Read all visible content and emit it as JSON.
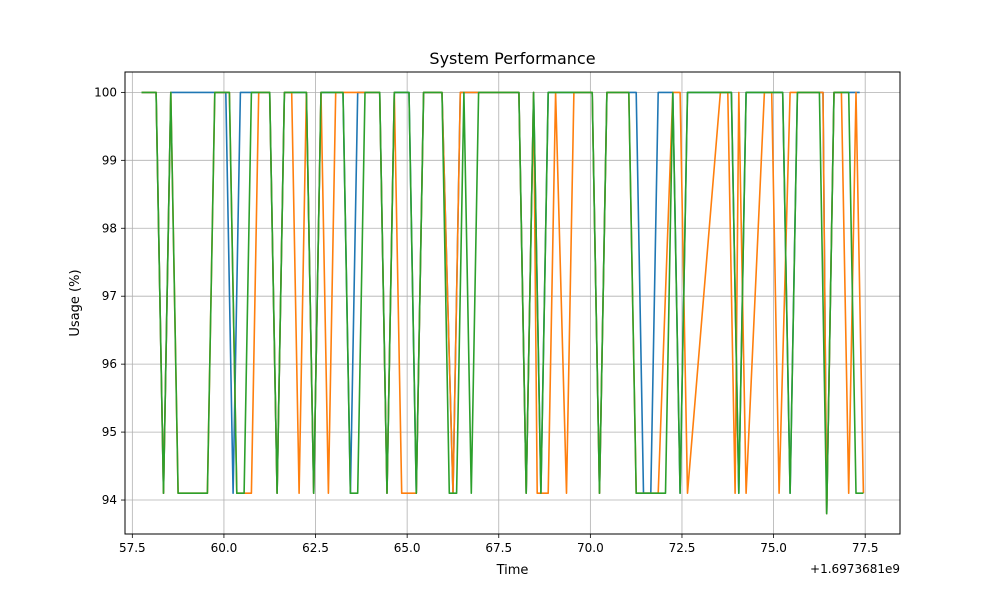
{
  "chart_data": {
    "type": "line",
    "title": "System Performance",
    "xlabel": "Time",
    "ylabel": "Usage (%)",
    "x_offset_label": "+1.6973681e9",
    "xlim": [
      57.3,
      78.45
    ],
    "ylim": [
      93.5,
      100.3
    ],
    "grid": true,
    "x_ticks": [
      57.5,
      60.0,
      62.5,
      65.0,
      67.5,
      70.0,
      72.5,
      75.0,
      77.5
    ],
    "x_tick_labels": [
      "57.5",
      "60.0",
      "62.5",
      "65.0",
      "67.5",
      "70.0",
      "72.5",
      "75.0",
      "77.5"
    ],
    "y_ticks": [
      94,
      95,
      96,
      97,
      98,
      99,
      100
    ],
    "y_tick_labels": [
      "94",
      "95",
      "96",
      "97",
      "98",
      "99",
      "100"
    ],
    "series": [
      {
        "color": "#1f77b4",
        "x": [
          57.75,
          58.15,
          58.35,
          58.55,
          59.65,
          60.05,
          60.25,
          60.45,
          61.25,
          61.45,
          61.65,
          62.25,
          62.45,
          62.65,
          63.25,
          63.45,
          63.65,
          64.25,
          64.45,
          64.65,
          65.05,
          65.25,
          65.45,
          65.95,
          66.25,
          66.45,
          66.65,
          68.05,
          68.25,
          68.45,
          68.65,
          68.85,
          69.05,
          70.05,
          70.25,
          70.45,
          71.25,
          71.45,
          71.65,
          71.85,
          72.25,
          72.45,
          72.65,
          73.85,
          74.05,
          74.25,
          75.25,
          75.45,
          75.65,
          76.35,
          76.45,
          76.65,
          77.15,
          77.35
        ],
        "y": [
          100,
          100,
          94.1,
          100,
          100,
          100,
          94.1,
          100,
          100,
          94.1,
          100,
          100,
          94.1,
          100,
          100,
          94.1,
          100,
          100,
          94.1,
          100,
          100,
          94.1,
          100,
          100,
          94.1,
          100,
          100,
          100,
          94.1,
          100,
          94.1,
          100,
          100,
          100,
          94.1,
          100,
          100,
          94.1,
          94.1,
          100,
          100,
          94.1,
          100,
          100,
          94.1,
          100,
          100,
          94.1,
          100,
          100,
          93.8,
          100,
          100,
          100
        ]
      },
      {
        "color": "#ff7f0e",
        "x": [
          57.75,
          58.15,
          58.35,
          58.55,
          58.75,
          59.55,
          59.75,
          60.15,
          60.35,
          60.75,
          60.95,
          61.25,
          61.45,
          61.65,
          61.85,
          62.05,
          62.25,
          62.45,
          62.65,
          62.85,
          63.05,
          63.45,
          63.65,
          64.25,
          64.45,
          64.65,
          64.85,
          65.25,
          65.45,
          65.95,
          66.25,
          66.45,
          66.65,
          68.05,
          68.25,
          68.45,
          68.55,
          68.85,
          69.05,
          69.35,
          69.55,
          70.05,
          70.25,
          70.45,
          71.05,
          71.25,
          71.45,
          71.65,
          71.85,
          72.25,
          72.45,
          72.65,
          73.55,
          73.75,
          73.95,
          74.05,
          74.25,
          74.75,
          74.95,
          75.15,
          75.45,
          75.65,
          76.35,
          76.45,
          76.65,
          76.85,
          77.05,
          77.25,
          77.45
        ],
        "y": [
          100,
          100,
          94.1,
          100,
          94.1,
          94.1,
          100,
          100,
          94.1,
          94.1,
          100,
          100,
          94.1,
          100,
          100,
          94.1,
          100,
          94.1,
          100,
          94.1,
          100,
          100,
          100,
          100,
          94.1,
          100,
          94.1,
          94.1,
          100,
          100,
          94.1,
          100,
          100,
          100,
          94.1,
          100,
          94.1,
          94.1,
          100,
          94.1,
          100,
          100,
          94.1,
          100,
          100,
          94.1,
          94.1,
          94.1,
          94.1,
          100,
          100,
          94.1,
          100,
          100,
          94.1,
          100,
          94.1,
          100,
          100,
          94.1,
          100,
          100,
          100,
          93.8,
          100,
          100,
          94.1,
          100,
          94.1
        ]
      },
      {
        "color": "#2ca02c",
        "x": [
          57.75,
          58.15,
          58.35,
          58.55,
          58.75,
          59.55,
          59.75,
          60.15,
          60.35,
          60.55,
          60.75,
          61.25,
          61.45,
          61.65,
          62.25,
          62.45,
          62.65,
          63.25,
          63.45,
          63.65,
          63.85,
          64.25,
          64.45,
          64.65,
          65.05,
          65.25,
          65.45,
          65.95,
          66.15,
          66.35,
          66.55,
          66.75,
          66.95,
          68.05,
          68.25,
          68.45,
          68.65,
          68.85,
          69.05,
          70.05,
          70.25,
          70.45,
          71.05,
          71.25,
          71.45,
          71.65,
          72.05,
          72.25,
          72.45,
          72.65,
          73.85,
          74.05,
          74.25,
          75.25,
          75.45,
          75.65,
          76.25,
          76.45,
          76.65,
          77.05,
          77.25,
          77.45
        ],
        "y": [
          100,
          100,
          94.1,
          100,
          94.1,
          94.1,
          100,
          100,
          94.1,
          94.1,
          100,
          100,
          94.1,
          100,
          100,
          94.1,
          100,
          100,
          94.1,
          94.1,
          100,
          100,
          94.1,
          100,
          100,
          94.1,
          100,
          100,
          94.1,
          94.1,
          100,
          94.1,
          100,
          100,
          94.1,
          100,
          94.1,
          100,
          100,
          100,
          94.1,
          100,
          100,
          94.1,
          94.1,
          94.1,
          94.1,
          100,
          94.1,
          100,
          100,
          94.1,
          100,
          100,
          94.1,
          100,
          100,
          93.8,
          100,
          100,
          94.1,
          94.1
        ]
      }
    ]
  }
}
